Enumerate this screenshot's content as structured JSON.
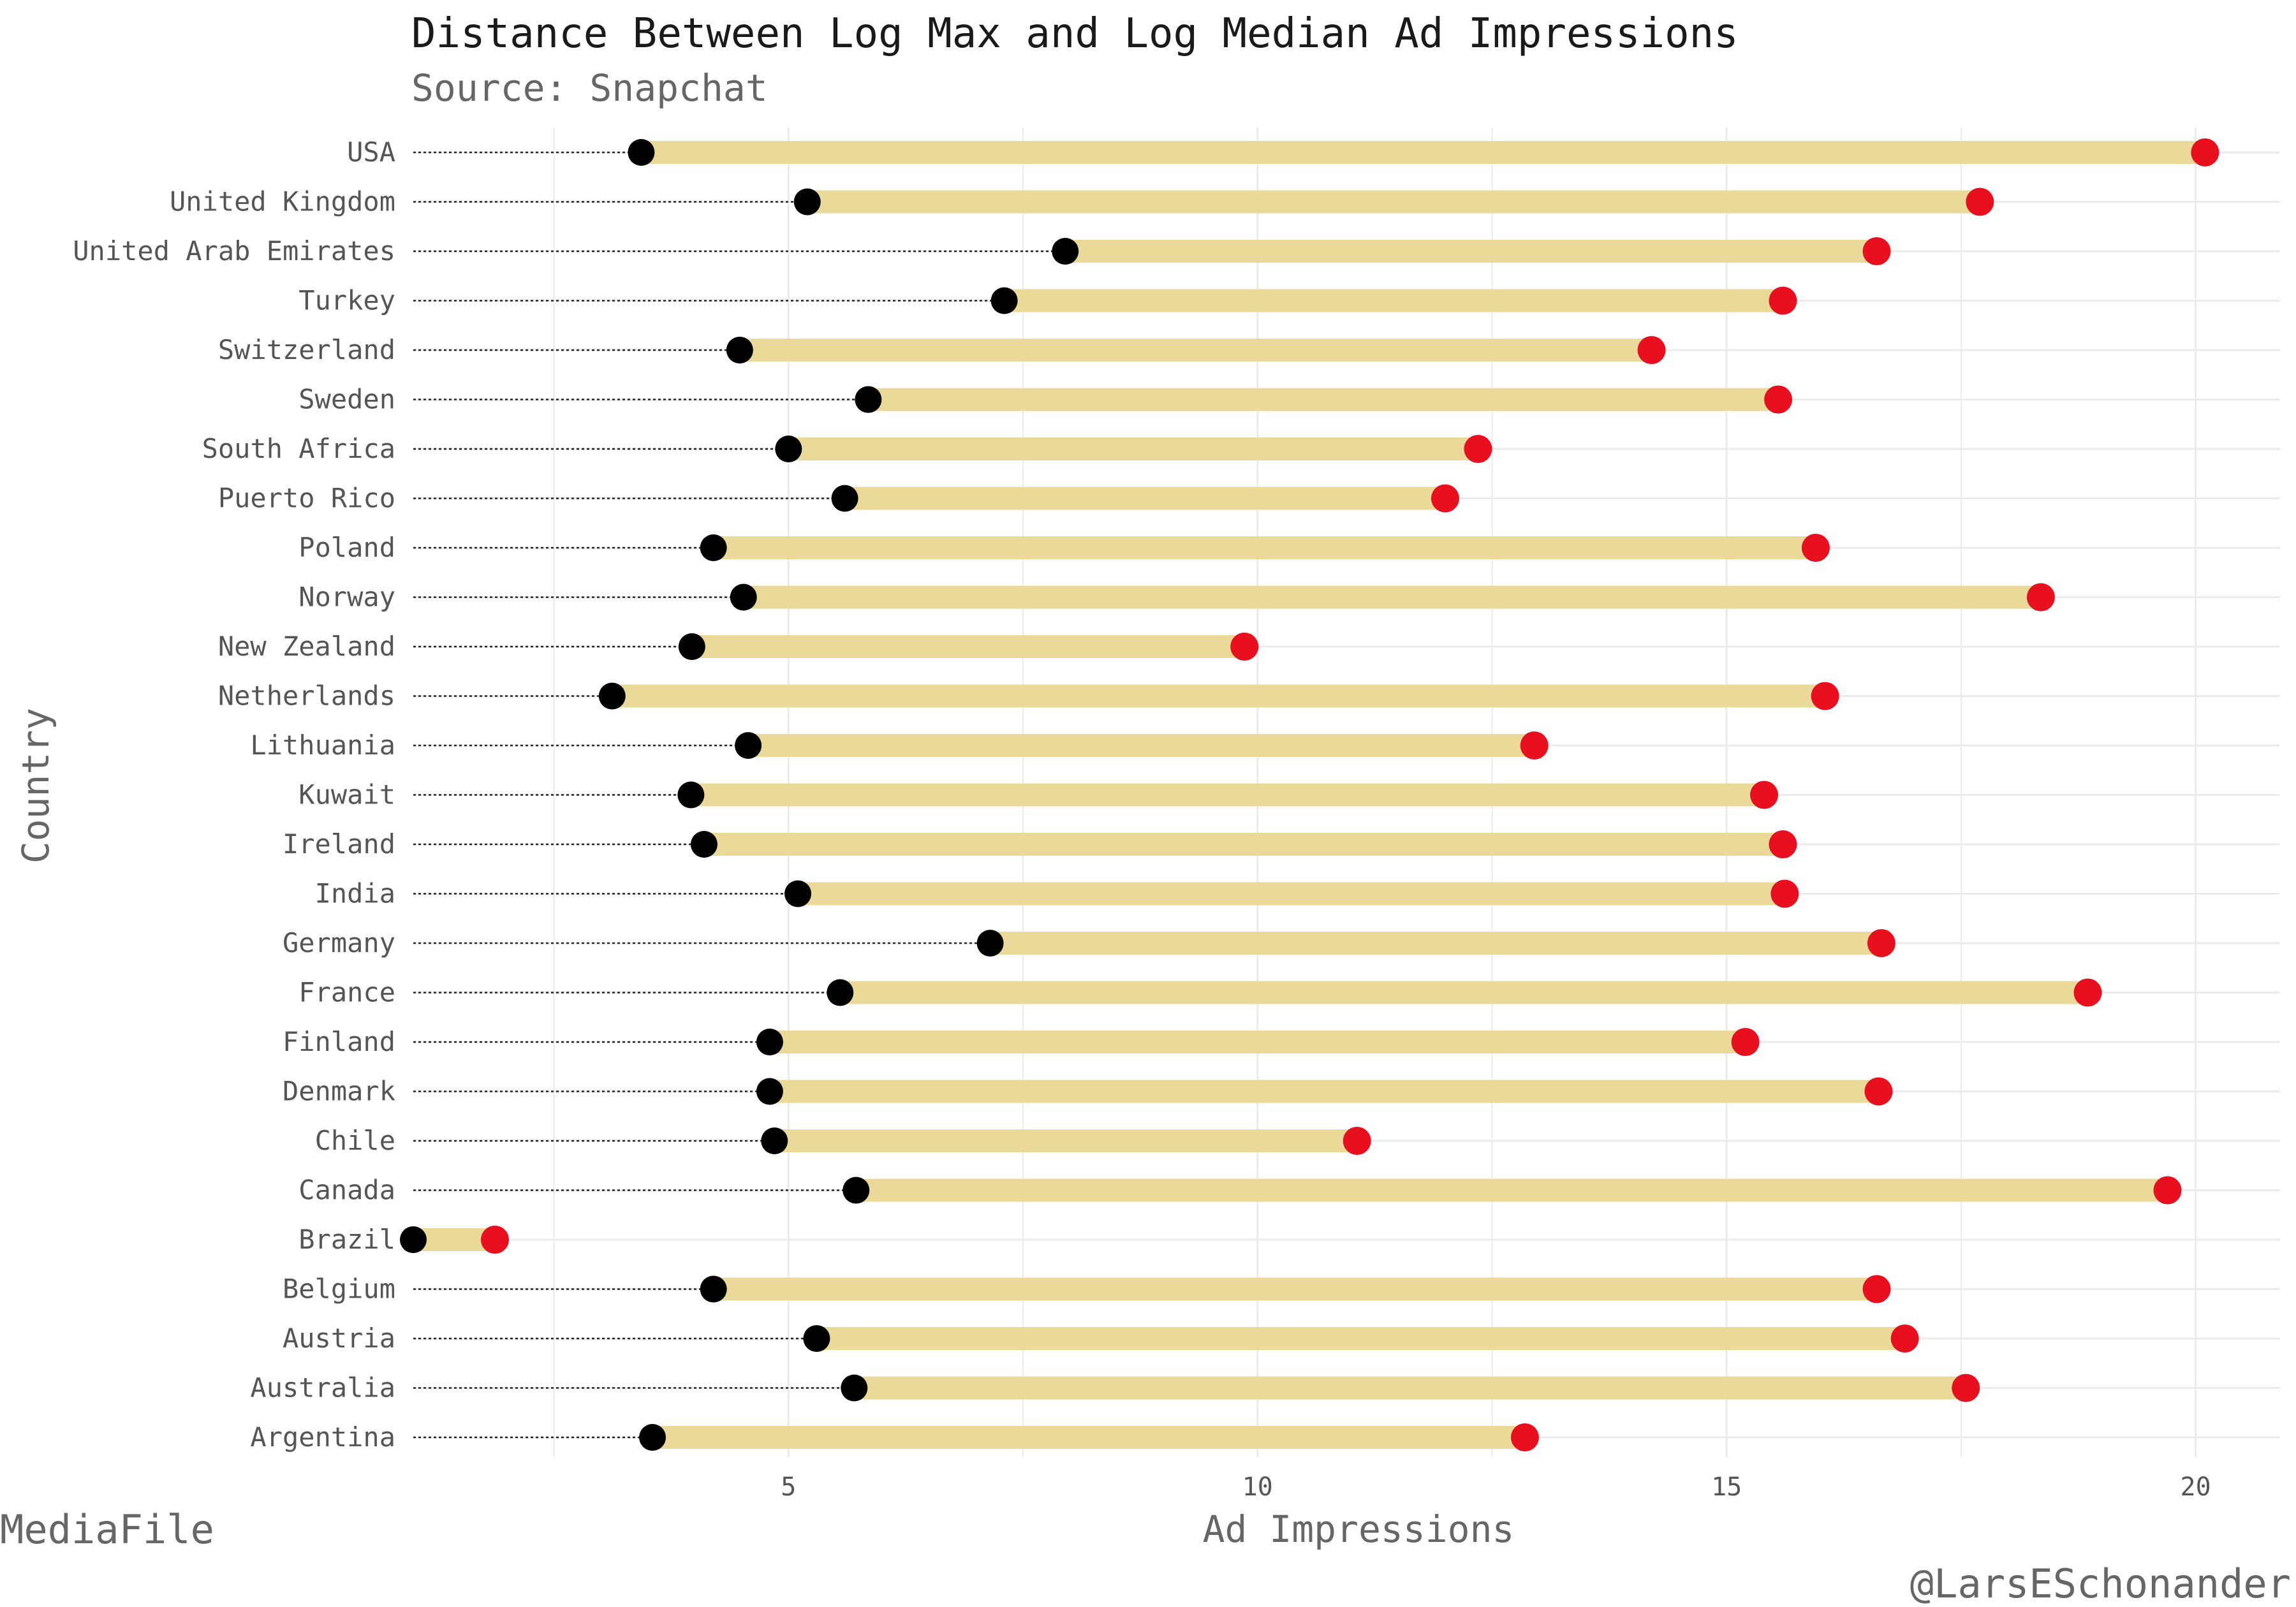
{
  "chart_data": {
    "type": "dumbbell",
    "title": "Distance Between Log Max and Log Median Ad Impressions",
    "subtitle": "Source: Snapchat",
    "xlabel": "Ad Impressions",
    "ylabel": "Country",
    "caption_left": "MediaFile",
    "caption_right": "@LarsESchonander",
    "xlim": [
      1.0,
      20.9
    ],
    "xticks": [
      5,
      10,
      15,
      20
    ],
    "colors": {
      "median_point": "#000000",
      "max_point": "#e8101e",
      "bar": "#ebd999",
      "leader": "#222222",
      "grid": "#ebebeb"
    },
    "series": [
      {
        "name": "median",
        "color": "#000000"
      },
      {
        "name": "max",
        "color": "#e8101e"
      }
    ],
    "rows": [
      {
        "country": "USA",
        "median": 3.43,
        "max": 20.1
      },
      {
        "country": "United Kingdom",
        "median": 5.2,
        "max": 17.7
      },
      {
        "country": "United Arab Emirates",
        "median": 7.95,
        "max": 16.6
      },
      {
        "country": "Turkey",
        "median": 7.3,
        "max": 15.6
      },
      {
        "country": "Switzerland",
        "median": 4.48,
        "max": 14.2
      },
      {
        "country": "Sweden",
        "median": 5.85,
        "max": 15.55
      },
      {
        "country": "South Africa",
        "median": 5.0,
        "max": 12.35
      },
      {
        "country": "Puerto Rico",
        "median": 5.6,
        "max": 12.0
      },
      {
        "country": "Poland",
        "median": 4.2,
        "max": 15.95
      },
      {
        "country": "Norway",
        "median": 4.52,
        "max": 18.35
      },
      {
        "country": "New Zealand",
        "median": 3.97,
        "max": 9.86
      },
      {
        "country": "Netherlands",
        "median": 3.12,
        "max": 16.05
      },
      {
        "country": "Lithuania",
        "median": 4.57,
        "max": 12.95
      },
      {
        "country": "Kuwait",
        "median": 3.96,
        "max": 15.4
      },
      {
        "country": "Ireland",
        "median": 4.1,
        "max": 15.6
      },
      {
        "country": "India",
        "median": 5.1,
        "max": 15.62
      },
      {
        "country": "Germany",
        "median": 7.15,
        "max": 16.65
      },
      {
        "country": "France",
        "median": 5.55,
        "max": 18.85
      },
      {
        "country": "Finland",
        "median": 4.8,
        "max": 15.2
      },
      {
        "country": "Denmark",
        "median": 4.8,
        "max": 16.62
      },
      {
        "country": "Chile",
        "median": 4.85,
        "max": 11.06
      },
      {
        "country": "Canada",
        "median": 5.72,
        "max": 19.7
      },
      {
        "country": "Brazil",
        "median": 1.0,
        "max": 1.87
      },
      {
        "country": "Belgium",
        "median": 4.2,
        "max": 16.6
      },
      {
        "country": "Austria",
        "median": 5.3,
        "max": 16.9
      },
      {
        "country": "Australia",
        "median": 5.7,
        "max": 17.55
      },
      {
        "country": "Argentina",
        "median": 3.55,
        "max": 12.85
      }
    ]
  }
}
